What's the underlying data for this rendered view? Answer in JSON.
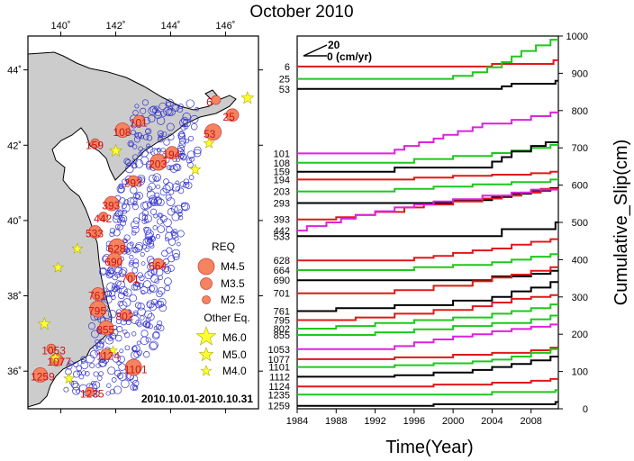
{
  "title": "October 2010",
  "map": {
    "lon_ticks": [
      "140˚",
      "142˚",
      "144˚",
      "146˚"
    ],
    "lat_ticks": [
      "44˚",
      "42˚",
      "40˚",
      "38˚",
      "36˚"
    ],
    "date_range": "2010.10.01-2010.10.31",
    "legend": {
      "req_title": "REQ",
      "req_items": [
        "M4.5",
        "M3.5",
        "M2.5"
      ],
      "other_title": "Other Eq.",
      "other_items": [
        "M6.0",
        "M5.0",
        "M4.0"
      ]
    },
    "station_labels": [
      {
        "id": "6",
        "lon": 145.3,
        "lat": 43.05
      },
      {
        "id": "25",
        "lon": 145.9,
        "lat": 42.65
      },
      {
        "id": "53",
        "lon": 145.2,
        "lat": 42.2
      },
      {
        "id": "101",
        "lon": 142.5,
        "lat": 42.5
      },
      {
        "id": "108",
        "lon": 141.9,
        "lat": 42.25
      },
      {
        "id": "159",
        "lon": 140.9,
        "lat": 41.9
      },
      {
        "id": "194",
        "lon": 143.7,
        "lat": 41.65
      },
      {
        "id": "203",
        "lon": 143.2,
        "lat": 41.4
      },
      {
        "id": "293",
        "lon": 142.3,
        "lat": 40.9
      },
      {
        "id": "393",
        "lon": 141.5,
        "lat": 40.3
      },
      {
        "id": "442",
        "lon": 141.2,
        "lat": 39.95
      },
      {
        "id": "533",
        "lon": 140.9,
        "lat": 39.55
      },
      {
        "id": "628",
        "lon": 141.7,
        "lat": 39.15
      },
      {
        "id": "664",
        "lon": 143.2,
        "lat": 38.7
      },
      {
        "id": "690",
        "lon": 141.6,
        "lat": 38.8
      },
      {
        "id": "701",
        "lon": 142.2,
        "lat": 38.35
      },
      {
        "id": "761",
        "lon": 141.0,
        "lat": 37.9
      },
      {
        "id": "795",
        "lon": 141.0,
        "lat": 37.5
      },
      {
        "id": "802",
        "lon": 142.0,
        "lat": 37.35
      },
      {
        "id": "855",
        "lon": 141.3,
        "lat": 37.0
      },
      {
        "id": "1053",
        "lon": 139.3,
        "lat": 36.45
      },
      {
        "id": "1077",
        "lon": 139.5,
        "lat": 36.15
      },
      {
        "id": "1101",
        "lon": 142.3,
        "lat": 35.95
      },
      {
        "id": "1124",
        "lon": 141.3,
        "lat": 36.3
      },
      {
        "id": "1259",
        "lon": 138.9,
        "lat": 35.75
      },
      {
        "id": "1235",
        "lon": 140.7,
        "lat": 35.3
      }
    ],
    "colors": {
      "land": "#cccccc",
      "req": "#f4845f",
      "other": "#ffff33",
      "small": "#3333cc"
    }
  },
  "chart_data": {
    "type": "line",
    "xlabel": "Time(Year)",
    "ylabel": "Cumulative_Slip(cm)",
    "xlim": [
      1984,
      2010.8
    ],
    "ylim": [
      0,
      1000
    ],
    "x_ticks": [
      "1984",
      "1988",
      "1992",
      "1996",
      "2000",
      "2004",
      "2008"
    ],
    "y_ticks": [
      "0",
      "100",
      "200",
      "300",
      "400",
      "500",
      "600",
      "700",
      "800",
      "900",
      "1000"
    ],
    "scale_label": "0 (cm/yr)",
    "scale_value": "20",
    "series": [
      {
        "name": "6",
        "color": "red",
        "base": 918,
        "steps": [
          [
            2004,
            925
          ],
          [
            2010.3,
            935
          ]
        ]
      },
      {
        "name": "25",
        "color": "green",
        "base": 885,
        "steps": [
          [
            2000,
            893
          ],
          [
            2002,
            903
          ],
          [
            2003.5,
            916
          ],
          [
            2005,
            930
          ],
          [
            2006,
            945
          ],
          [
            2007,
            960
          ],
          [
            2008.5,
            975
          ],
          [
            2010,
            990
          ]
        ]
      },
      {
        "name": "53",
        "color": "black",
        "base": 858,
        "steps": [
          [
            2005,
            865
          ],
          [
            2006,
            872
          ],
          [
            2010.5,
            880
          ]
        ]
      },
      {
        "name": "101",
        "color": "magenta",
        "base": 685,
        "steps": [
          [
            1994,
            695
          ],
          [
            1995,
            705
          ],
          [
            1996.5,
            715
          ],
          [
            1998,
            725
          ],
          [
            1999,
            735
          ],
          [
            2000.5,
            745
          ],
          [
            2002,
            755
          ],
          [
            2003,
            765
          ],
          [
            2006,
            775
          ],
          [
            2008,
            785
          ],
          [
            2010,
            795
          ]
        ]
      },
      {
        "name": "108",
        "color": "green",
        "base": 660,
        "steps": [
          [
            1996,
            670
          ],
          [
            2000,
            678
          ],
          [
            2004,
            686
          ],
          [
            2006,
            693
          ],
          [
            2008,
            700
          ],
          [
            2010,
            708
          ]
        ]
      },
      {
        "name": "159",
        "color": "black",
        "base": 636,
        "steps": [
          [
            1994,
            647
          ],
          [
            2004,
            663
          ],
          [
            2005,
            675
          ],
          [
            2006,
            690
          ],
          [
            2008,
            705
          ],
          [
            2009.5,
            715
          ]
        ]
      },
      {
        "name": "194",
        "color": "red",
        "base": 615,
        "steps": [
          [
            1996,
            620
          ],
          [
            2000,
            625
          ],
          [
            2004,
            628
          ],
          [
            2008,
            632
          ],
          [
            2010,
            636
          ]
        ]
      },
      {
        "name": "203",
        "color": "green",
        "base": 583,
        "steps": [
          [
            1994,
            590
          ],
          [
            1998,
            596
          ],
          [
            2002,
            602
          ],
          [
            2006,
            608
          ],
          [
            2010,
            615
          ]
        ]
      },
      {
        "name": "293",
        "color": "black",
        "base": 552,
        "steps": [
          [
            2000,
            560
          ],
          [
            2004,
            568
          ],
          [
            2006,
            577
          ],
          [
            2008,
            585
          ],
          [
            2010,
            592
          ]
        ]
      },
      {
        "name": "393",
        "color": "red",
        "base": 508,
        "steps": [
          [
            1988,
            514
          ],
          [
            1990,
            520
          ],
          [
            1992,
            528
          ],
          [
            1995,
            540
          ],
          [
            1997,
            548
          ],
          [
            2000,
            556
          ],
          [
            2003,
            564
          ],
          [
            2005,
            572
          ],
          [
            2007,
            580
          ],
          [
            2009,
            590
          ]
        ]
      },
      {
        "name": "442",
        "color": "magenta",
        "base": 478,
        "steps": [
          [
            1985,
            490
          ],
          [
            1987,
            500
          ],
          [
            1988.5,
            510
          ],
          [
            1990,
            520
          ],
          [
            1992,
            530
          ],
          [
            1994,
            540
          ],
          [
            1996,
            548
          ],
          [
            1998,
            556
          ],
          [
            2000,
            562
          ],
          [
            2003,
            572
          ],
          [
            2006,
            580
          ],
          [
            2008,
            588
          ]
        ]
      },
      {
        "name": "533",
        "color": "black",
        "base": 463,
        "steps": [
          [
            2005,
            482
          ],
          [
            2010.5,
            500
          ]
        ]
      },
      {
        "name": "628",
        "color": "red",
        "base": 398,
        "steps": [
          [
            1996,
            405
          ],
          [
            1998,
            410
          ],
          [
            2000,
            418
          ],
          [
            2002,
            425
          ],
          [
            2004,
            430
          ],
          [
            2006,
            440
          ],
          [
            2008,
            448
          ],
          [
            2010,
            455
          ]
        ]
      },
      {
        "name": "664",
        "color": "green",
        "base": 372,
        "steps": [
          [
            1996,
            380
          ],
          [
            2000,
            386
          ],
          [
            2004,
            393
          ],
          [
            2006,
            400
          ],
          [
            2008,
            408
          ],
          [
            2010,
            415
          ]
        ]
      },
      {
        "name": "690",
        "color": "black",
        "base": 345,
        "steps": [
          [
            2004,
            355
          ],
          [
            2008,
            362
          ],
          [
            2010,
            370
          ]
        ]
      },
      {
        "name": "701",
        "color": "red",
        "base": 310,
        "steps": [
          [
            1994,
            318
          ],
          [
            1998,
            330
          ],
          [
            2002,
            342
          ],
          [
            2004,
            352
          ],
          [
            2006,
            360
          ],
          [
            2008,
            370
          ],
          [
            2010,
            380
          ]
        ]
      },
      {
        "name": "761",
        "color": "black",
        "base": 262,
        "steps": [
          [
            1988,
            270
          ],
          [
            1994,
            278
          ],
          [
            2000,
            290
          ],
          [
            2004,
            300
          ],
          [
            2006,
            315
          ],
          [
            2008,
            325
          ],
          [
            2010,
            340
          ]
        ]
      },
      {
        "name": "795",
        "color": "red",
        "base": 238,
        "steps": [
          [
            1990,
            245
          ],
          [
            1994,
            255
          ],
          [
            1998,
            265
          ],
          [
            2002,
            275
          ],
          [
            2004,
            285
          ],
          [
            2006,
            295
          ],
          [
            2008,
            300
          ],
          [
            2010,
            305
          ]
        ]
      },
      {
        "name": "802",
        "color": "green",
        "base": 215,
        "steps": [
          [
            1988,
            222
          ],
          [
            1992,
            230
          ],
          [
            1996,
            238
          ],
          [
            2000,
            245
          ],
          [
            2004,
            255
          ],
          [
            2006,
            262
          ],
          [
            2008,
            270
          ],
          [
            2010,
            280
          ]
        ]
      },
      {
        "name": "855",
        "color": "green",
        "base": 198,
        "steps": [
          [
            1992,
            205
          ],
          [
            1996,
            213
          ],
          [
            2000,
            222
          ],
          [
            2004,
            230
          ],
          [
            2008,
            240
          ],
          [
            2010,
            250
          ]
        ]
      },
      {
        "name": "1053",
        "color": "magenta",
        "base": 160,
        "steps": [
          [
            1994,
            168
          ],
          [
            1996,
            178
          ],
          [
            1998,
            186
          ],
          [
            2000,
            194
          ],
          [
            2002,
            200
          ],
          [
            2004,
            208
          ],
          [
            2006,
            214
          ],
          [
            2008,
            220
          ],
          [
            2010,
            226
          ]
        ]
      },
      {
        "name": "1077",
        "color": "red",
        "base": 133,
        "steps": [
          [
            1994,
            138
          ],
          [
            2000,
            145
          ],
          [
            2004,
            150
          ],
          [
            2008,
            157
          ],
          [
            2010,
            164
          ]
        ]
      },
      {
        "name": "1101",
        "color": "green",
        "base": 112,
        "steps": [
          [
            1994,
            117
          ],
          [
            1998,
            122
          ],
          [
            2002,
            127
          ],
          [
            2004,
            132
          ],
          [
            2006,
            140
          ],
          [
            2008,
            150
          ],
          [
            2010,
            160
          ]
        ]
      },
      {
        "name": "1112",
        "color": "black",
        "base": 86,
        "steps": [
          [
            1994,
            90
          ],
          [
            1998,
            97
          ],
          [
            2002,
            104
          ],
          [
            2004,
            112
          ],
          [
            2006,
            120
          ],
          [
            2008,
            130
          ],
          [
            2010,
            140
          ]
        ]
      },
      {
        "name": "1124",
        "color": "red",
        "base": 60,
        "steps": [
          [
            1998,
            65
          ],
          [
            2004,
            70
          ],
          [
            2008,
            75
          ],
          [
            2010,
            80
          ]
        ]
      },
      {
        "name": "1235",
        "color": "green",
        "base": 38,
        "steps": [
          [
            2004,
            45
          ],
          [
            2010.5,
            50
          ]
        ]
      },
      {
        "name": "1259",
        "color": "black",
        "base": 8,
        "steps": [
          [
            1998,
            12
          ],
          [
            2010.5,
            18
          ]
        ]
      }
    ]
  }
}
